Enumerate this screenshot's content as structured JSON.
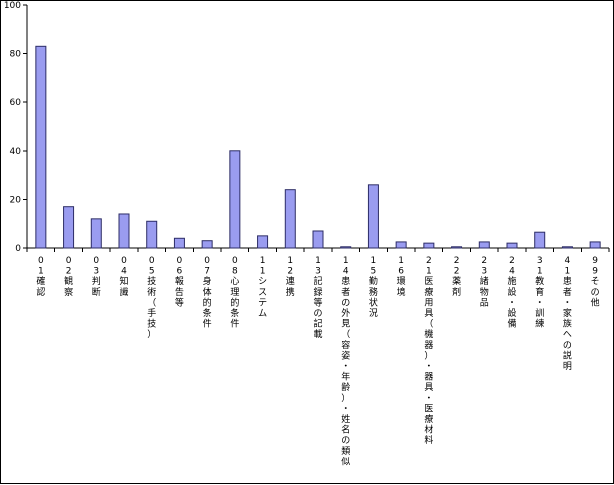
{
  "chart_data": {
    "type": "bar",
    "ylim": [
      0,
      100
    ],
    "yticks": [
      0,
      20,
      40,
      60,
      80,
      100
    ],
    "grid": false,
    "categories": [
      "01確認",
      "02観察",
      "03判断",
      "04知識",
      "05技術（手技）",
      "06報告等",
      "07身体的条件",
      "08心理的条件",
      "11システム",
      "12連携",
      "13記録等の記載",
      "14患者の外見（容姿・年齢）・姓名の類似",
      "15勤務状況",
      "16環境",
      "21医療用具（機器）・器具・医療材料",
      "22薬剤",
      "23諸物品",
      "24施設・設備",
      "31教育・訓練",
      "41患者・家族への説明",
      "99その他"
    ],
    "values": [
      83,
      17,
      12,
      14,
      11,
      4,
      3,
      40,
      5,
      24,
      7,
      0.5,
      26,
      2.5,
      2,
      0.5,
      2.5,
      2,
      6.5,
      0.5,
      2.5
    ],
    "colors": {
      "bar_fill": "#9a9cf0",
      "bar_stroke": "#2c2c66"
    }
  }
}
